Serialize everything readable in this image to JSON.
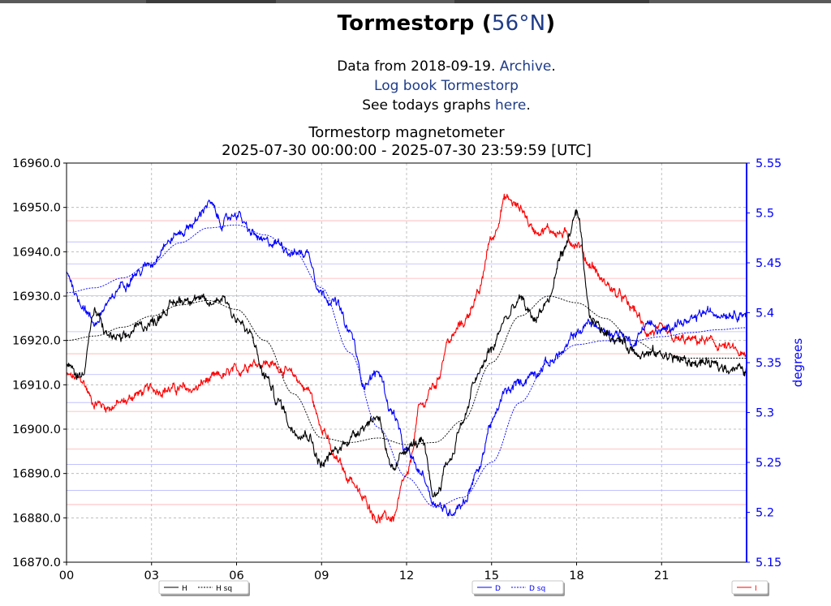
{
  "page": {
    "station": "Tormestorp",
    "latitude": "56°N",
    "data_from_prefix": "Data from 2018-09-19.",
    "archive_link": "Archive",
    "logbook_link": "Log book Tormestorp",
    "todays_prefix": "See todays graphs",
    "todays_link": "here"
  },
  "chart_data": {
    "type": "line",
    "title": "Tormestorp magnetometer",
    "subtitle": "2025-07-30 00:00:00 - 2025-07-30 23:59:59 [UTC]",
    "xlabel": "",
    "ylabel_left": "",
    "ylabel_right": "degrees",
    "xlim": [
      0,
      24
    ],
    "ylim_left": [
      16870,
      16960
    ],
    "ylim_right": [
      5.15,
      5.55
    ],
    "x_ticks": [
      0,
      3,
      6,
      9,
      12,
      15,
      18,
      21
    ],
    "x_tick_labels": [
      "00",
      "03",
      "06",
      "09",
      "12",
      "15",
      "18",
      "21"
    ],
    "y_left_ticks": [
      16870,
      16880,
      16890,
      16900,
      16910,
      16920,
      16930,
      16940,
      16950,
      16960
    ],
    "y_left_tick_labels": [
      "16870.0",
      "16880.0",
      "16890.0",
      "16900.0",
      "16910.0",
      "16920.0",
      "16930.0",
      "16940.0",
      "16950.0",
      "16960.0"
    ],
    "y_right_ticks": [
      5.15,
      5.2,
      5.25,
      5.3,
      5.35,
      5.4,
      5.45,
      5.5,
      5.55
    ],
    "y_right_tick_labels": [
      "5.15",
      "5.2",
      "5.25",
      "5.3",
      "5.35",
      "5.4",
      "5.45",
      "5.5",
      "5.55"
    ],
    "grid": true,
    "ref_lines_red_left": [
      16947,
      16934,
      16917,
      16904,
      16895.5,
      16883
    ],
    "ref_lines_blue_right": [
      5.471,
      5.449,
      5.417,
      5.381,
      5.338,
      5.31,
      5.248,
      5.222
    ],
    "colors": {
      "H": "#000000",
      "D": "#0000ff",
      "I": "#ff0000",
      "right_axis": "#0000ff",
      "ref_red": "#ffb0b0",
      "ref_blue": "#b8b8ff"
    },
    "series": [
      {
        "name": "H",
        "axis": "left",
        "style": "solid",
        "x": [
          0,
          0.5,
          1,
          1.5,
          2,
          2.5,
          3,
          3.5,
          4,
          4.5,
          5,
          5.5,
          6,
          6.5,
          7,
          7.5,
          8,
          8.5,
          9,
          9.5,
          10,
          10.5,
          11,
          11.5,
          12,
          12.5,
          13,
          13.5,
          14,
          14.5,
          15,
          15.5,
          16,
          16.5,
          17,
          17.5,
          18,
          18.5,
          19,
          19.5,
          20,
          20.5,
          21,
          21.5,
          22,
          22.5,
          23,
          23.5,
          24
        ],
        "values": [
          16914,
          16912,
          16926,
          16921,
          16920,
          16923,
          16924,
          16927,
          16929,
          16930,
          16928,
          16930,
          16925,
          16921,
          16912,
          16906,
          16900,
          16899,
          16892,
          16895,
          16898,
          16901,
          16903,
          16890,
          16896,
          16897,
          16885,
          16893,
          16902,
          16912,
          16918,
          16925,
          16929,
          16925,
          16929,
          16940,
          16948,
          16925,
          16922,
          16920,
          16918,
          16917,
          16917,
          16916,
          16915,
          16915,
          16914,
          16914,
          16913
        ]
      },
      {
        "name": "H sq",
        "axis": "left",
        "style": "dotted",
        "x": [
          0,
          1,
          2,
          3,
          4,
          5,
          6,
          7,
          8,
          9,
          10,
          11,
          12,
          13,
          14,
          15,
          16,
          17,
          18,
          19,
          20,
          21,
          22,
          23,
          24
        ],
        "values": [
          16920,
          16921,
          16923,
          16925.5,
          16928,
          16929,
          16927,
          16920,
          16908,
          16898,
          16897,
          16898,
          16896.5,
          16897,
          16902,
          16915,
          16925.5,
          16930,
          16928.5,
          16925,
          16920,
          16917,
          16916,
          16916,
          16916
        ]
      },
      {
        "name": "D",
        "axis": "right",
        "style": "solid",
        "x": [
          0,
          0.5,
          1,
          1.5,
          2,
          2.5,
          3,
          3.5,
          4,
          4.5,
          5,
          5.5,
          6,
          6.5,
          7,
          7.5,
          8,
          8.5,
          9,
          9.5,
          10,
          10.5,
          11,
          11.5,
          12,
          12.5,
          13,
          13.5,
          14,
          14.5,
          15,
          15.5,
          16,
          16.5,
          17,
          17.5,
          18,
          18.5,
          19,
          19.5,
          20,
          20.5,
          21,
          21.5,
          22,
          22.5,
          23,
          23.5,
          24
        ],
        "values": [
          5.44,
          5.41,
          5.39,
          5.41,
          5.43,
          5.44,
          5.45,
          5.47,
          5.48,
          5.49,
          5.51,
          5.49,
          5.5,
          5.48,
          5.47,
          5.47,
          5.46,
          5.46,
          5.42,
          5.41,
          5.38,
          5.33,
          5.34,
          5.3,
          5.26,
          5.24,
          5.21,
          5.2,
          5.21,
          5.24,
          5.29,
          5.32,
          5.33,
          5.34,
          5.35,
          5.36,
          5.38,
          5.39,
          5.38,
          5.38,
          5.37,
          5.39,
          5.38,
          5.39,
          5.39,
          5.4,
          5.4,
          5.4,
          5.4
        ]
      },
      {
        "name": "D sq",
        "axis": "right",
        "style": "dotted",
        "x": [
          0,
          1,
          2,
          3,
          4,
          5,
          6,
          7,
          8,
          9,
          10,
          11,
          12,
          13,
          14,
          15,
          16,
          17,
          18,
          19,
          20,
          21,
          22,
          23,
          24
        ],
        "values": [
          5.42,
          5.425,
          5.435,
          5.45,
          5.47,
          5.485,
          5.488,
          5.478,
          5.462,
          5.425,
          5.36,
          5.285,
          5.235,
          5.205,
          5.215,
          5.25,
          5.31,
          5.35,
          5.368,
          5.372,
          5.372,
          5.376,
          5.38,
          5.383,
          5.385
        ]
      },
      {
        "name": "I",
        "axis": "left",
        "style": "solid",
        "x": [
          0,
          0.5,
          1,
          1.5,
          2,
          2.5,
          3,
          3.5,
          4,
          4.5,
          5,
          5.5,
          6,
          6.5,
          7,
          7.5,
          8,
          8.5,
          9,
          9.5,
          10,
          10.5,
          11,
          11.5,
          12,
          12.5,
          13,
          13.5,
          14,
          14.5,
          15,
          15.5,
          16,
          16.5,
          17,
          17.5,
          18,
          18.5,
          19,
          19.5,
          20,
          20.5,
          21,
          21.5,
          22,
          22.5,
          23,
          23.5,
          24
        ],
        "values": [
          16912,
          16911,
          16906,
          16905,
          16906,
          16908,
          16909,
          16909,
          16909,
          16909,
          16911,
          16912,
          16913,
          16915,
          16915,
          16914,
          16912,
          16909,
          16901,
          16893,
          16889,
          16884,
          16880,
          16880,
          16889,
          16905,
          16910,
          16920,
          16924,
          16930,
          16943,
          16952,
          16950,
          16945,
          16945,
          16944,
          16942,
          16937,
          16933,
          16930,
          16927,
          16922,
          16922,
          16920,
          16920,
          16920,
          16919,
          16918,
          16916
        ]
      }
    ],
    "legend": [
      {
        "group": "left",
        "entries": [
          {
            "label": "H",
            "style": "solid",
            "color": "#000000"
          },
          {
            "label": "H sq",
            "style": "dotted",
            "color": "#000000"
          }
        ]
      },
      {
        "group": "center-right",
        "entries": [
          {
            "label": "D",
            "style": "solid",
            "color": "#0000ff"
          },
          {
            "label": "D sq",
            "style": "dotted",
            "color": "#0000ff"
          }
        ]
      },
      {
        "group": "right",
        "entries": [
          {
            "label": "I",
            "style": "solid",
            "color": "#ff0000"
          }
        ]
      }
    ]
  }
}
